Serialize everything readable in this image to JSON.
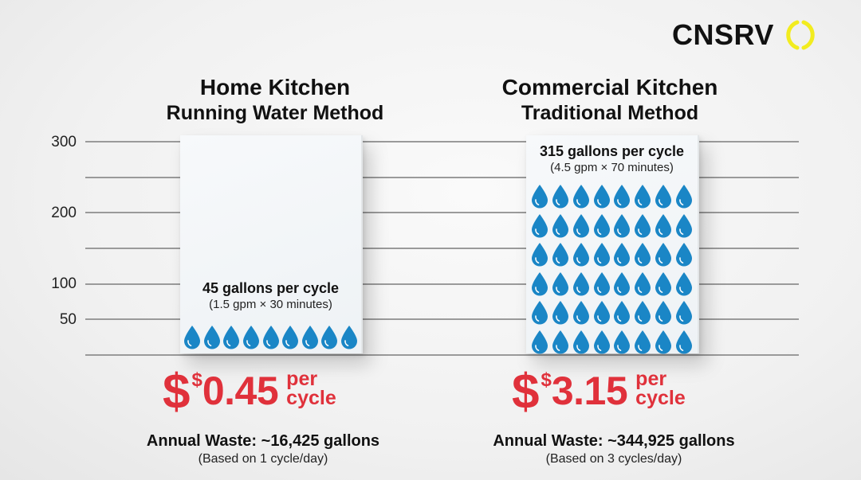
{
  "brand": {
    "name": "CNSRV",
    "mark_icon": "yellow-ring-icon",
    "mark_color": "#f2ec1f"
  },
  "colors": {
    "drop": "#1a86c6",
    "price": "#e0313b",
    "gridline": "#9a9a9a",
    "text": "#111111"
  },
  "yaxis": {
    "ticks": [
      "300",
      "200",
      "100",
      "50"
    ]
  },
  "panels": {
    "home": {
      "title_line1": "Home Kitchen",
      "title_line2": "Running Water Method",
      "gallons_label": "45 gallons per cycle",
      "formula": "(1.5 gpm × 30 minutes)",
      "drop_count": 9,
      "price_symbol": "$",
      "price_small_symbol": "$",
      "price_value": "0.45",
      "price_unit_line1": "per",
      "price_unit_line2": "cycle",
      "annual_waste": "Annual Waste: ~16,425 gallons",
      "annual_basis": "(Based on 1 cycle/day)"
    },
    "commercial": {
      "title_line1": "Commercial Kitchen",
      "title_line2": "Traditional Method",
      "gallons_label": "315 gallons per cycle",
      "formula": "(4.5 gpm × 70 minutes)",
      "drop_count": 48,
      "drop_grid": "8 columns × 6 rows",
      "price_symbol": "$",
      "price_small_symbol": "$",
      "price_value": "3.15",
      "price_unit_line1": "per",
      "price_unit_line2": "cycle",
      "annual_waste": "Annual Waste: ~344,925 gallons",
      "annual_basis": "(Based on 3 cycles/day)"
    }
  },
  "chart_data": {
    "type": "bar",
    "title": "Water use per cleaning cycle: Home Kitchen vs Commercial Kitchen",
    "categories": [
      "Home Kitchen – Running Water Method",
      "Commercial Kitchen – Traditional Method"
    ],
    "values": [
      45,
      315
    ],
    "unit": "gallons per cycle",
    "formulas": [
      "1.5 gpm × 30 minutes",
      "4.5 gpm × 70 minutes"
    ],
    "cost_per_cycle": [
      "$0.45",
      "$3.15"
    ],
    "annual_waste_gallons": [
      16425,
      344925
    ],
    "annual_basis": [
      "1 cycle/day",
      "3 cycles/day"
    ],
    "ylabel": "",
    "xlabel": "",
    "yticks": [
      50,
      100,
      200,
      300
    ],
    "ylim": [
      0,
      300
    ],
    "grid": true,
    "legend": "none",
    "note": "Bars drawn as pictograph cards of water drops; cards visually span the full axis height"
  }
}
